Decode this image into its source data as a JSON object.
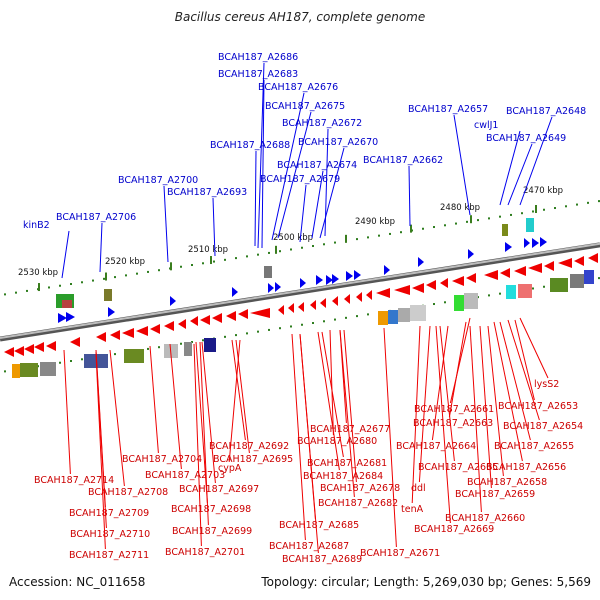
{
  "title": "Bacillus cereus AH187, complete genome",
  "footer": {
    "accession": "Accession: NC_011658",
    "summary": "Topology: circular; Length: 5,269,030 bp; Genes: 5,569"
  },
  "colors": {
    "forward": "#0000ee",
    "reverse": "#ee0000",
    "backbone": "#8a8a8a",
    "tick_major": "#3a7d1e",
    "tick_minor": "#2e7d1e"
  },
  "scale_labels": [
    "2530 kbp",
    "2520 kbp",
    "2510 kbp",
    "2500 kbp",
    "2490 kbp",
    "2480 kbp",
    "2470 kbp"
  ],
  "top_labels": [
    "BCAH187_A2686",
    "BCAH187_A2683",
    "BCAH187_A2676",
    "BCAH187_A2675",
    "BCAH187_A2672",
    "BCAH187_A2657",
    "BCAH187_A2648",
    "cwlJ1",
    "BCAH187_A2649",
    "BCAH187_A2688",
    "BCAH187_A2670",
    "BCAH187_A2674",
    "BCAH187_A2662",
    "BCAH187_A2679",
    "BCAH187_A2700",
    "BCAH187_A2693",
    "kinB2",
    "BCAH187_A2706"
  ],
  "bottom_labels": [
    "lysS2",
    "BCAH187_A2653",
    "BCAH187_A2661",
    "BCAH187_A2654",
    "BCAH187_A2663",
    "BCAH187_A2677",
    "BCAH187_A2680",
    "BCAH187_A2655",
    "BCAH187_A2664",
    "BCAH187_A2692",
    "BCAH187_A2704",
    "BCAH187_A2695",
    "BCAH187_A2681",
    "BCAH187_A2656",
    "cypA",
    "BCAH187_A2665",
    "BCAH187_A2703",
    "BCAH187_A2684",
    "BCAH187_A2714",
    "BCAH187_A2658",
    "BCAH187_A2678",
    "ddl",
    "BCAH187_A2697",
    "BCAH187_A2708",
    "BCAH187_A2659",
    "BCAH187_A2682",
    "tenA",
    "BCAH187_A2698",
    "BCAH187_A2709",
    "BCAH187_A2660",
    "BCAH187_A2685",
    "BCAH187_A2669",
    "BCAH187_A2699",
    "BCAH187_A2710",
    "BCAH187_A2687",
    "BCAH187_A2701",
    "BCAH187_A2671",
    "BCAH187_A2711",
    "BCAH187_A2689"
  ]
}
